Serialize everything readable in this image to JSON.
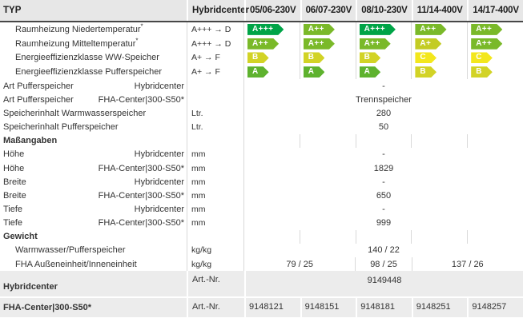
{
  "table": {
    "header": {
      "label_col": "TYP",
      "units_col": "Hybridcenter",
      "data_cols": [
        "05/06-230V",
        "06/07-230V",
        "08/10-230V",
        "11/14-400V",
        "14/17-400V"
      ]
    },
    "colors": {
      "a3": "#00a447",
      "a2": "#7ab929",
      "a1": "#c3cc24",
      "a": "#5eb22e",
      "b": "#d2d326",
      "c": "#f3e71d",
      "header_bg": "#e7e7e7",
      "footer_bg": "#ececec",
      "divider": "#d9d9d9",
      "header_border": "#474747",
      "text": "#333333"
    },
    "rows": [
      {
        "label": "Raumheizung Niedertemperatur",
        "sup": "*",
        "indent": true,
        "units": "A+++ → D",
        "type": "badges",
        "badges": [
          {
            "t": "A+++",
            "c": "a3"
          },
          {
            "t": "A++",
            "c": "a2"
          },
          {
            "t": "A+++",
            "c": "a3"
          },
          {
            "t": "A++",
            "c": "a2"
          },
          {
            "t": "A++",
            "c": "a2"
          }
        ]
      },
      {
        "label": "Raumheizung Mitteltemperatur",
        "sup": "*",
        "indent": true,
        "units": "A+++ → D",
        "type": "badges",
        "badges": [
          {
            "t": "A++",
            "c": "a2"
          },
          {
            "t": "A++",
            "c": "a2"
          },
          {
            "t": "A++",
            "c": "a2"
          },
          {
            "t": "A+",
            "c": "a1"
          },
          {
            "t": "A++",
            "c": "a2"
          }
        ]
      },
      {
        "label": "Energieeffizienzklasse WW-Speicher",
        "indent": true,
        "units": "A+ → F",
        "type": "badges",
        "badges": [
          {
            "t": "B",
            "c": "b"
          },
          {
            "t": "B",
            "c": "b"
          },
          {
            "t": "B",
            "c": "b"
          },
          {
            "t": "C",
            "c": "c"
          },
          {
            "t": "C",
            "c": "c"
          }
        ]
      },
      {
        "label": "Energieeffizienzklasse Pufferspeicher",
        "indent": true,
        "units": "A+ → F",
        "type": "badges",
        "badges": [
          {
            "t": "A",
            "c": "a"
          },
          {
            "t": "A",
            "c": "a"
          },
          {
            "t": "A",
            "c": "a"
          },
          {
            "t": "B",
            "c": "b"
          },
          {
            "t": "B",
            "c": "b"
          }
        ]
      },
      {
        "label": "Art Pufferspeicher",
        "sublabel": "Hybridcenter",
        "units": "",
        "type": "span",
        "value": "-"
      },
      {
        "label": "Art Pufferspeicher",
        "sublabel": "FHA-Center|300-S50*",
        "units": "",
        "type": "span",
        "value": "Trennspeicher"
      },
      {
        "label": "Speicherinhalt Warmwasserspeicher",
        "units": "Ltr.",
        "type": "span",
        "value": "280"
      },
      {
        "label": "Speicherinhalt Pufferspeicher",
        "units": "Ltr.",
        "type": "span",
        "value": "50"
      },
      {
        "label": "Maßangaben",
        "section": true,
        "units": "",
        "type": "cols",
        "values": [
          "",
          "",
          "",
          "",
          ""
        ]
      },
      {
        "label": "Höhe",
        "sublabel": "Hybridcenter",
        "units": "mm",
        "type": "span",
        "value": "-"
      },
      {
        "label": "Höhe",
        "sublabel": "FHA-Center|300-S50*",
        "units": "mm",
        "type": "span",
        "value": "1829"
      },
      {
        "label": "Breite",
        "sublabel": "Hybridcenter",
        "units": "mm",
        "type": "span",
        "value": "-"
      },
      {
        "label": "Breite",
        "sublabel": "FHA-Center|300-S50*",
        "units": "mm",
        "type": "span",
        "value": "650"
      },
      {
        "label": "Tiefe",
        "sublabel": "Hybridcenter",
        "units": "mm",
        "type": "span",
        "value": "-"
      },
      {
        "label": "Tiefe",
        "sublabel": "FHA-Center|300-S50*",
        "units": "mm",
        "type": "span",
        "value": "999"
      },
      {
        "label": "Gewicht",
        "section": true,
        "units": "",
        "type": "cols",
        "values": [
          "",
          "",
          "",
          "",
          ""
        ]
      },
      {
        "label": "Warmwasser/Pufferspeicher",
        "indent": true,
        "units": "kg/kg",
        "type": "span",
        "value": "140 / 22"
      },
      {
        "label": "FHA Außeneinheit/Inneneinheit",
        "indent": true,
        "units": "kg/kg",
        "type": "multispan",
        "values": [
          {
            "text": "79 / 25",
            "span": 2
          },
          {
            "text": "98 / 25",
            "span": 1
          },
          {
            "text": "137 / 26",
            "span": 2
          }
        ]
      }
    ],
    "footer": [
      {
        "label": "Hybridcenter",
        "units": "Art.-Nr.",
        "type": "span",
        "value": "9149448"
      },
      {
        "label": "FHA-Center|300-S50*",
        "units": "Art.-Nr.",
        "type": "cells",
        "values": [
          "9148121",
          "9148151",
          "9148181",
          "9148251",
          "9148257"
        ]
      }
    ]
  }
}
